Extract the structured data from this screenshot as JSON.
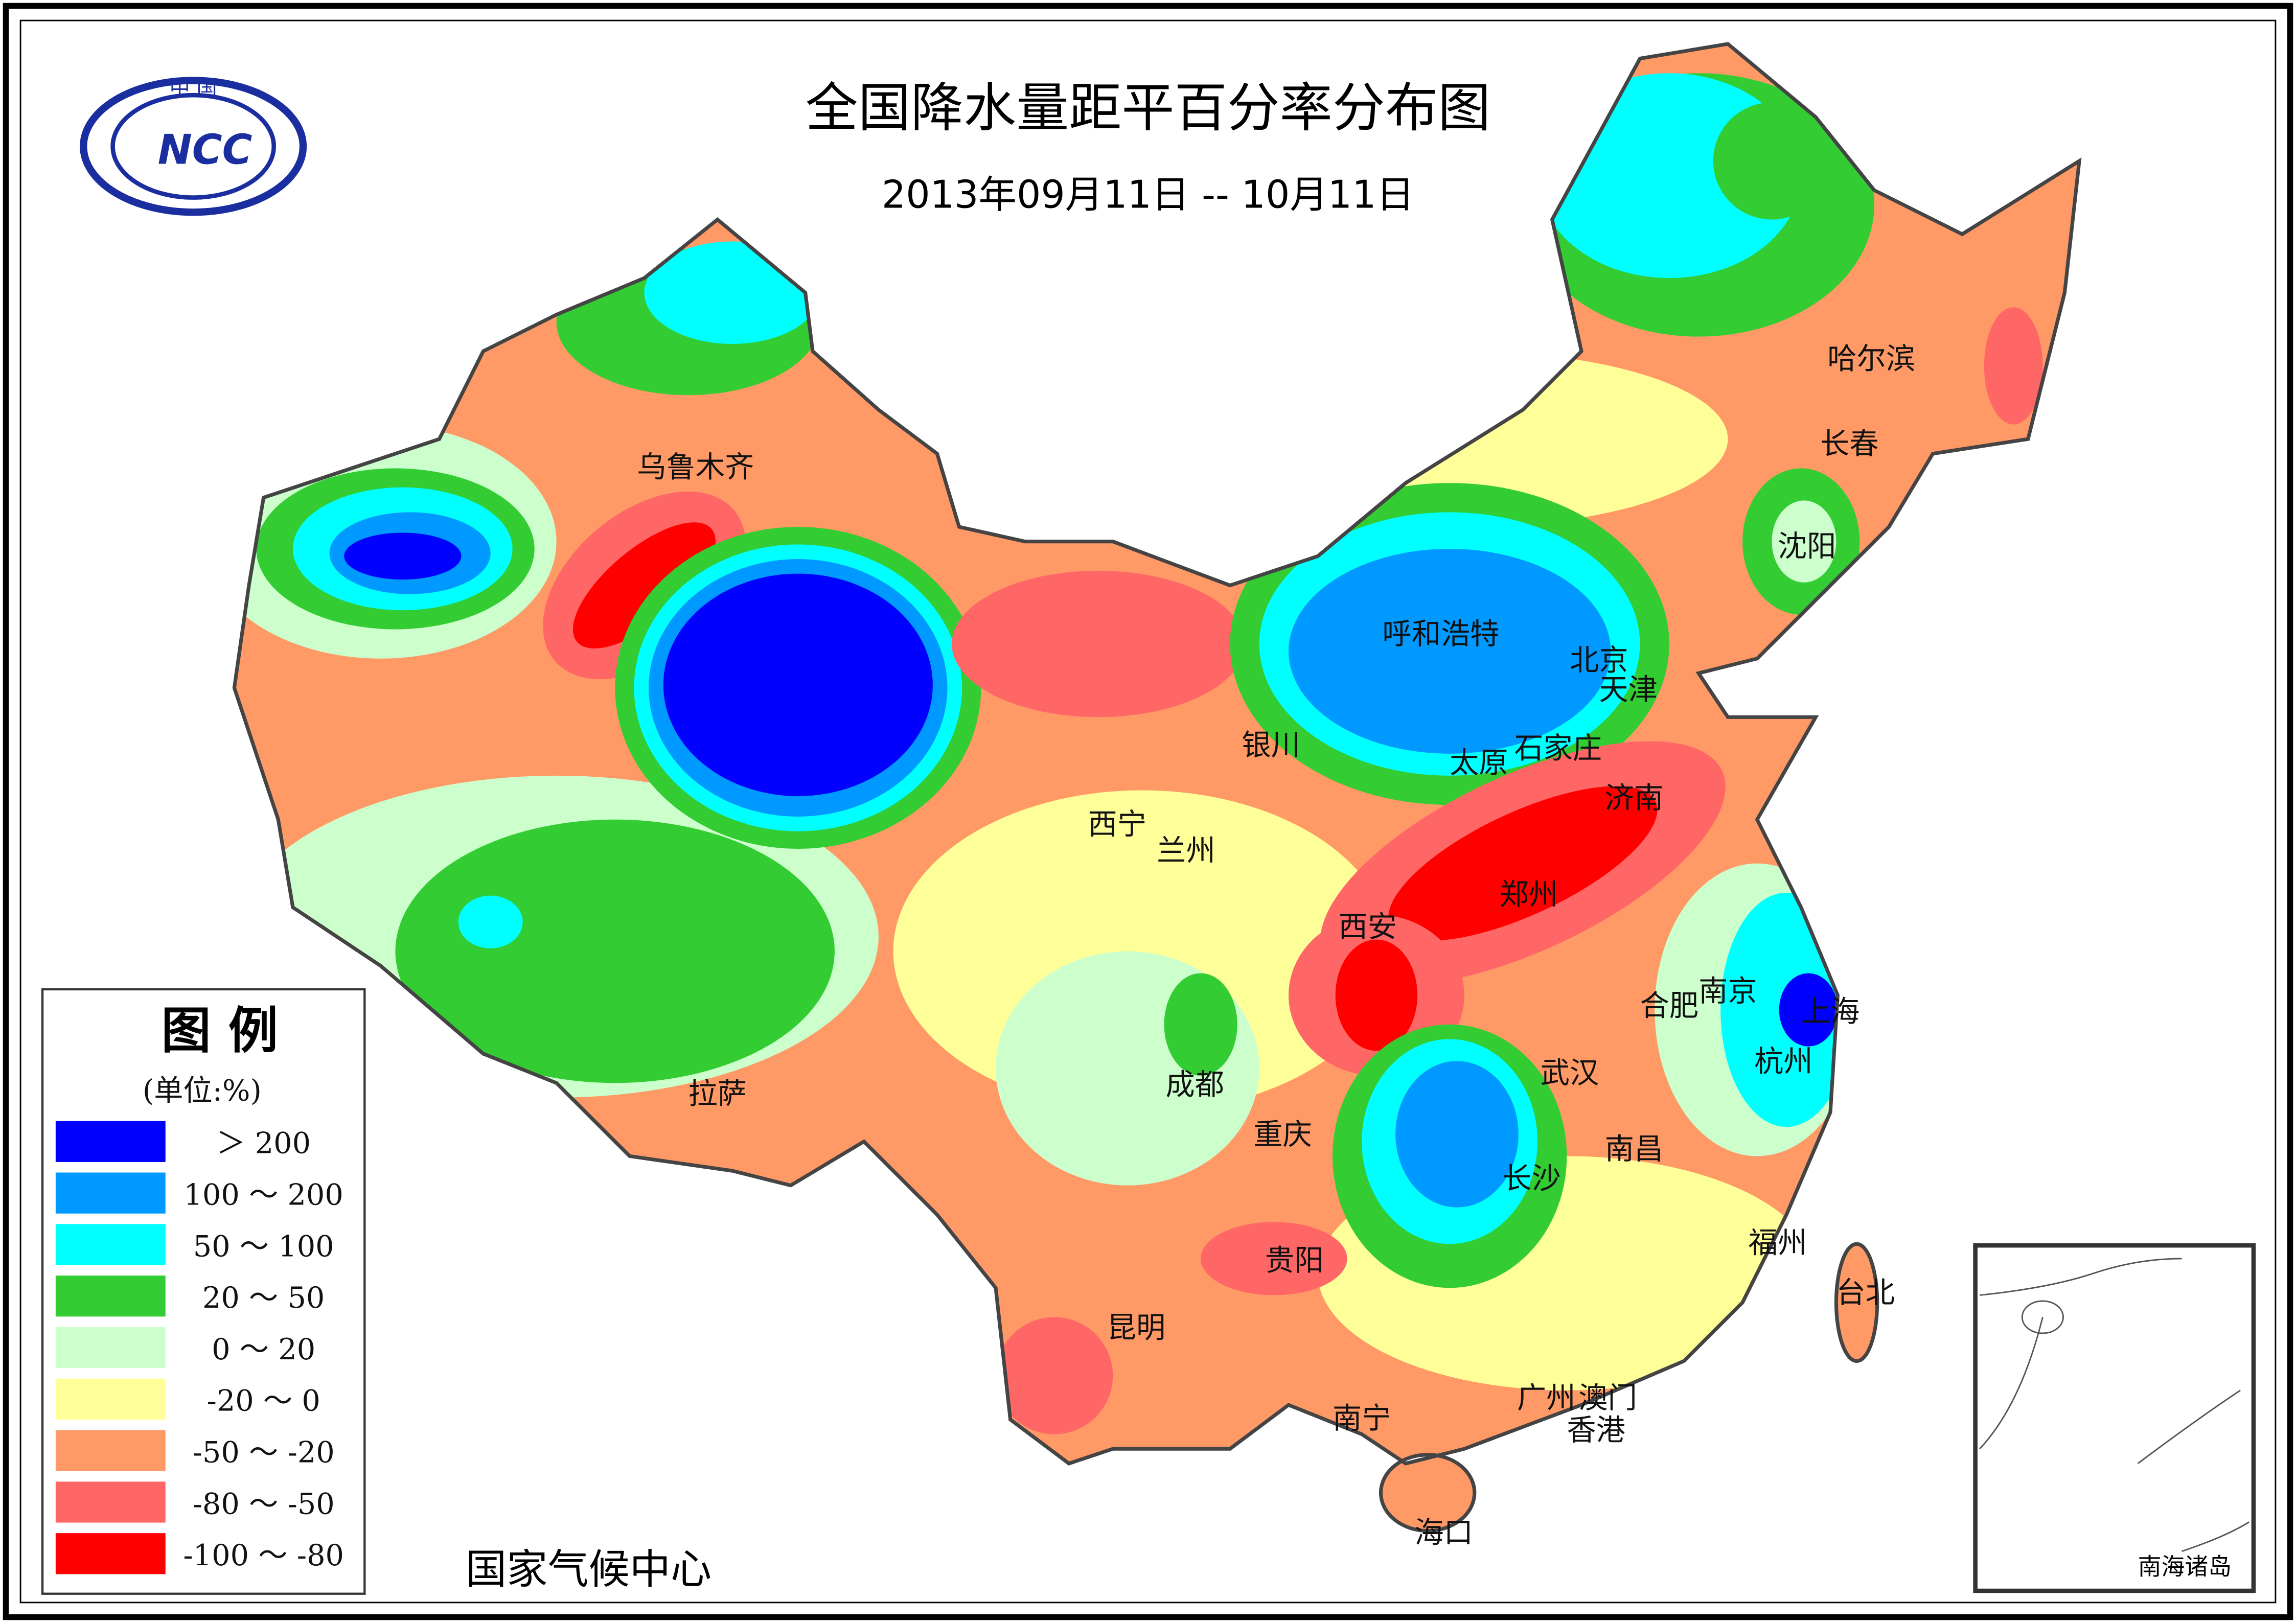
{
  "title": "全国降水量距平百分率分布图",
  "subtitle": "2013年09月11日 -- 10月11日",
  "logo": {
    "top_text": "中 国",
    "center_text": "NCC"
  },
  "issuer": "国家气候中心",
  "inset_label": "南海诸岛",
  "legend": {
    "title": "图 例",
    "unit": "(单位:%)",
    "items": [
      {
        "label": "＞ 200",
        "color": "#0000FF"
      },
      {
        "label": "100 ～ 200",
        "color": "#0099FF"
      },
      {
        "label": "50 ～ 100",
        "color": "#00FFFF"
      },
      {
        "label": "20 ～ 50",
        "color": "#33CC33"
      },
      {
        "label": "0 ～ 20",
        "color": "#CCFFCC"
      },
      {
        "label": "-20 ～ 0",
        "color": "#FFFF99"
      },
      {
        "label": "-50 ～ -20",
        "color": "#FF9966"
      },
      {
        "label": "-80 ～ -50",
        "color": "#FF6666"
      },
      {
        "label": "-100 ～ -80",
        "color": "#FF0000"
      }
    ]
  },
  "cities": [
    "乌鲁木齐",
    "哈尔滨",
    "长春",
    "沈阳",
    "呼和浩特",
    "北京",
    "天津",
    "银川",
    "太原",
    "石家庄",
    "济南",
    "西宁",
    "兰州",
    "西安",
    "郑州",
    "合肥",
    "南京",
    "上海",
    "杭州",
    "拉萨",
    "成都",
    "重庆",
    "武汉",
    "长沙",
    "南昌",
    "福州",
    "台北",
    "贵阳",
    "昆明",
    "南宁",
    "广州",
    "澳门",
    "香港",
    "海口"
  ]
}
